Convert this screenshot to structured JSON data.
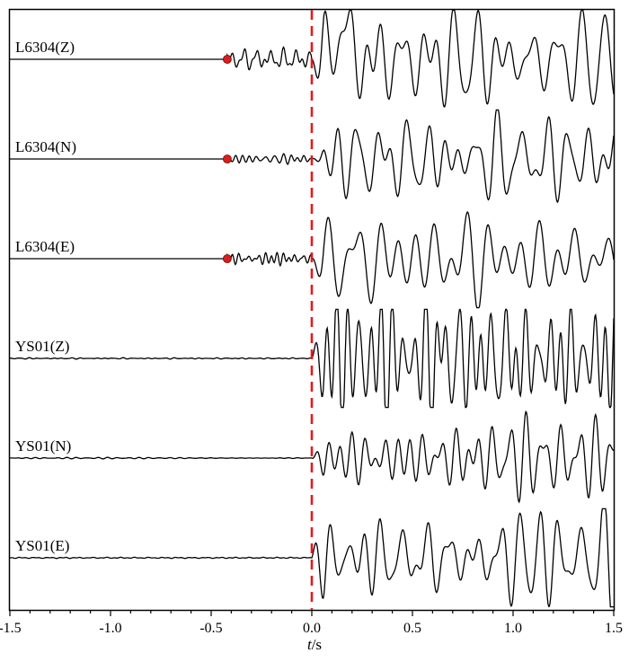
{
  "chart_data": {
    "type": "line",
    "title": "",
    "xlabel_italic": "t",
    "xlabel_rest": "/s",
    "ylabel": "",
    "xlim": [
      -1.5,
      1.5
    ],
    "xticks": [
      -1.5,
      -1.0,
      -0.5,
      0.0,
      0.5,
      1.0,
      1.5
    ],
    "xtick_labels": [
      "-1.5",
      "-1.0",
      "-0.5",
      "0.0",
      "0.5",
      "1.0",
      "1.5"
    ],
    "grid": false,
    "reference_line": {
      "x": 0.0,
      "style": "dashed",
      "color": "#e41a1c"
    },
    "marker_color": "#d62020",
    "series": [
      {
        "name": "L6304(Z)",
        "pick_marker_t": -0.42,
        "noise": 0.05,
        "pre_noise": 0.18,
        "amp": 0.95,
        "seed": 11,
        "freq": 1.0,
        "spike_t": 0.15
      },
      {
        "name": "L6304(N)",
        "pick_marker_t": -0.42,
        "noise": 0.04,
        "pre_noise": 0.1,
        "amp": 0.85,
        "seed": 23,
        "freq": 0.9,
        "spike_t": null
      },
      {
        "name": "L6304(E)",
        "pick_marker_t": -0.42,
        "noise": 0.04,
        "pre_noise": 0.14,
        "amp": 0.9,
        "seed": 37,
        "freq": 0.75,
        "spike_t": null
      },
      {
        "name": "YS01(Z)",
        "pick_marker_t": null,
        "noise": 0.015,
        "pre_noise": 0.0,
        "amp": 0.95,
        "seed": 41,
        "freq": 1.3,
        "spike_t": null
      },
      {
        "name": "YS01(N)",
        "pick_marker_t": null,
        "noise": 0.015,
        "pre_noise": 0.0,
        "amp": 0.9,
        "seed": 53,
        "freq": 1.25,
        "spike_t": null
      },
      {
        "name": "YS01(E)",
        "pick_marker_t": null,
        "noise": 0.015,
        "pre_noise": 0.0,
        "amp": 0.95,
        "seed": 67,
        "freq": 1.05,
        "spike_t": null
      }
    ]
  }
}
